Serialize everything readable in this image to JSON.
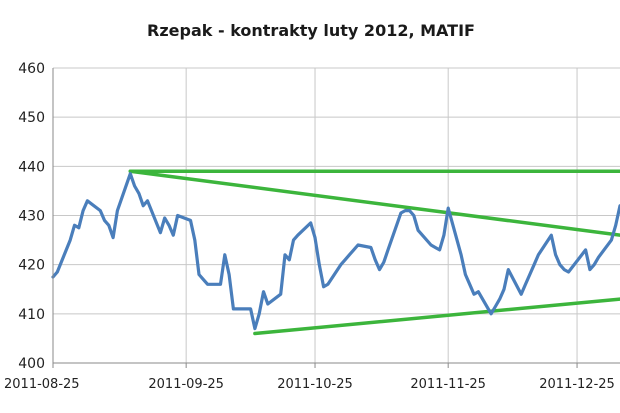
{
  "chart_data": {
    "type": "line",
    "title": "Rzepak - kontrakty luty 2012, MATIF",
    "xlabel": "",
    "ylabel": "",
    "x_range": [
      "2011-08-25",
      "2012-01-04"
    ],
    "ylim": [
      400,
      460
    ],
    "y_ticks": [
      400,
      410,
      420,
      430,
      440,
      450,
      460
    ],
    "x_ticks": [
      "2011-08-25",
      "2011-09-25",
      "2011-10-25",
      "2011-11-25",
      "2011-12-25"
    ],
    "grid": true,
    "legend": "none",
    "series": [
      {
        "color": "#4a7ebb",
        "points": [
          [
            "2011-08-25",
            417.5
          ],
          [
            "2011-08-26",
            418.5
          ],
          [
            "2011-08-29",
            425
          ],
          [
            "2011-08-30",
            428
          ],
          [
            "2011-08-31",
            427.5
          ],
          [
            "2011-09-01",
            431
          ],
          [
            "2011-09-02",
            433
          ],
          [
            "2011-09-05",
            431
          ],
          [
            "2011-09-06",
            429
          ],
          [
            "2011-09-07",
            428
          ],
          [
            "2011-09-08",
            425.5
          ],
          [
            "2011-09-09",
            431
          ],
          [
            "2011-09-12",
            438.5
          ],
          [
            "2011-09-13",
            436
          ],
          [
            "2011-09-14",
            434.5
          ],
          [
            "2011-09-15",
            432
          ],
          [
            "2011-09-16",
            433
          ],
          [
            "2011-09-19",
            426.5
          ],
          [
            "2011-09-20",
            429.5
          ],
          [
            "2011-09-21",
            428
          ],
          [
            "2011-09-22",
            426
          ],
          [
            "2011-09-23",
            430
          ],
          [
            "2011-09-26",
            429
          ],
          [
            "2011-09-27",
            425
          ],
          [
            "2011-09-28",
            418
          ],
          [
            "2011-09-29",
            417
          ],
          [
            "2011-09-30",
            416
          ],
          [
            "2011-10-03",
            416
          ],
          [
            "2011-10-04",
            422
          ],
          [
            "2011-10-05",
            418
          ],
          [
            "2011-10-06",
            411
          ],
          [
            "2011-10-07",
            411
          ],
          [
            "2011-10-10",
            411
          ],
          [
            "2011-10-11",
            407
          ],
          [
            "2011-10-12",
            410
          ],
          [
            "2011-10-13",
            414.5
          ],
          [
            "2011-10-14",
            412
          ],
          [
            "2011-10-17",
            414
          ],
          [
            "2011-10-18",
            422
          ],
          [
            "2011-10-19",
            421
          ],
          [
            "2011-10-20",
            425
          ],
          [
            "2011-10-21",
            426
          ],
          [
            "2011-10-24",
            428.5
          ],
          [
            "2011-10-25",
            425.5
          ],
          [
            "2011-10-26",
            420
          ],
          [
            "2011-10-27",
            415.5
          ],
          [
            "2011-10-28",
            416
          ],
          [
            "2011-10-31",
            420
          ],
          [
            "2011-11-01",
            421
          ],
          [
            "2011-11-02",
            422
          ],
          [
            "2011-11-03",
            423
          ],
          [
            "2011-11-04",
            424
          ],
          [
            "2011-11-07",
            423.5
          ],
          [
            "2011-11-08",
            421
          ],
          [
            "2011-11-09",
            419
          ],
          [
            "2011-11-10",
            420.5
          ],
          [
            "2011-11-11",
            423
          ],
          [
            "2011-11-14",
            430.5
          ],
          [
            "2011-11-15",
            431
          ],
          [
            "2011-11-16",
            431
          ],
          [
            "2011-11-17",
            430
          ],
          [
            "2011-11-18",
            427
          ],
          [
            "2011-11-21",
            424
          ],
          [
            "2011-11-22",
            423.5
          ],
          [
            "2011-11-23",
            423
          ],
          [
            "2011-11-24",
            426
          ],
          [
            "2011-11-25",
            431.5
          ],
          [
            "2011-11-28",
            422
          ],
          [
            "2011-11-29",
            418
          ],
          [
            "2011-11-30",
            416
          ],
          [
            "2011-12-01",
            414
          ],
          [
            "2011-12-02",
            414.5
          ],
          [
            "2011-12-05",
            410
          ],
          [
            "2011-12-06",
            411.5
          ],
          [
            "2011-12-07",
            413
          ],
          [
            "2011-12-08",
            415
          ],
          [
            "2011-12-09",
            419
          ],
          [
            "2011-12-12",
            414
          ],
          [
            "2011-12-13",
            416
          ],
          [
            "2011-12-14",
            418
          ],
          [
            "2011-12-15",
            420
          ],
          [
            "2011-12-16",
            422
          ],
          [
            "2011-12-19",
            426
          ],
          [
            "2011-12-20",
            422
          ],
          [
            "2011-12-21",
            420
          ],
          [
            "2011-12-22",
            419
          ],
          [
            "2011-12-23",
            418.5
          ],
          [
            "2011-12-27",
            423
          ],
          [
            "2011-12-28",
            419
          ],
          [
            "2011-12-29",
            420
          ],
          [
            "2011-12-30",
            421.5
          ],
          [
            "2012-01-02",
            425
          ],
          [
            "2012-01-03",
            428
          ],
          [
            "2012-01-04",
            432
          ]
        ]
      }
    ],
    "trend_lines": [
      {
        "color": "#3cb53c",
        "from": [
          "2011-09-12",
          439
        ],
        "to": [
          "2012-01-04",
          439
        ]
      },
      {
        "color": "#3cb53c",
        "from": [
          "2011-09-12",
          439
        ],
        "to": [
          "2012-01-04",
          426
        ]
      },
      {
        "color": "#3cb53c",
        "from": [
          "2011-10-11",
          406
        ],
        "to": [
          "2012-01-04",
          413
        ]
      }
    ]
  }
}
